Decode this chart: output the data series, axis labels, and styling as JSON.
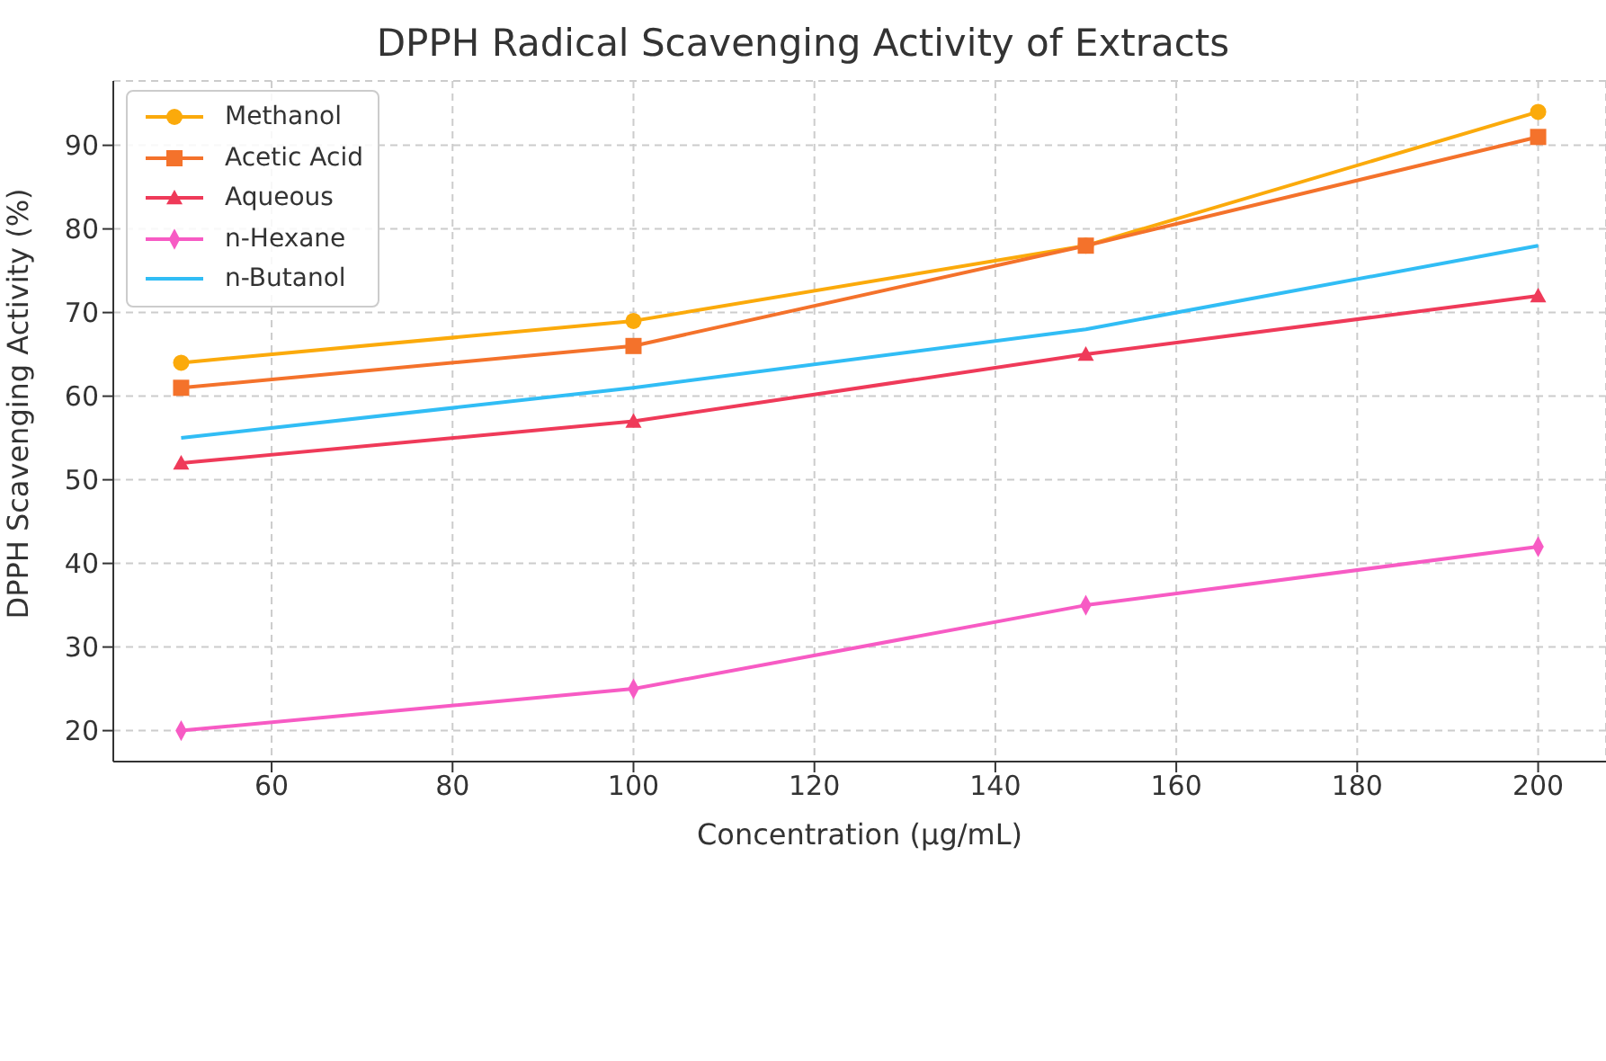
{
  "chart_data": {
    "type": "line",
    "title": "DPPH Radical Scavenging Activity of Extracts",
    "xlabel": "Concentration (μg/mL)",
    "ylabel": "DPPH Scavenging Activity (%)",
    "x": [
      50,
      100,
      150,
      200
    ],
    "series": [
      {
        "name": "Methanol",
        "color": "#fbaa0b",
        "marker": "circle",
        "values": [
          64,
          69,
          78,
          94
        ]
      },
      {
        "name": "Acetic Acid",
        "color": "#f4722b",
        "marker": "square",
        "values": [
          61,
          66,
          78,
          91
        ]
      },
      {
        "name": "Aqueous",
        "color": "#ef3a59",
        "marker": "triangle",
        "values": [
          52,
          57,
          65,
          72
        ]
      },
      {
        "name": "n-Hexane",
        "color": "#f75bc4",
        "marker": "diamond",
        "values": [
          20,
          25,
          35,
          42
        ]
      },
      {
        "name": "n-Butanol",
        "color": "#31bdf5",
        "marker": "none",
        "values": [
          55,
          61,
          68,
          78
        ]
      }
    ],
    "xlim": [
      42.5,
      207.5
    ],
    "xticks": [
      60,
      80,
      100,
      120,
      140,
      160,
      180,
      200
    ],
    "ylim": [
      16.3,
      97.7
    ],
    "yticks": [
      20,
      30,
      40,
      50,
      60,
      70,
      80,
      90
    ],
    "grid": true,
    "legend": "top left",
    "line_style": "solid"
  }
}
